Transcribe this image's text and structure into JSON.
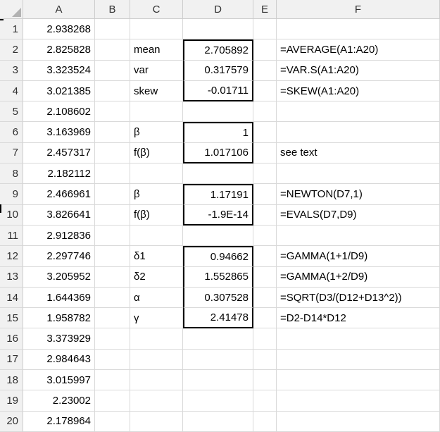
{
  "sheet": {
    "column_headers": [
      "A",
      "B",
      "C",
      "D",
      "E",
      "F"
    ],
    "row_headers": [
      "1",
      "2",
      "3",
      "4",
      "5",
      "6",
      "7",
      "8",
      "9",
      "10",
      "11",
      "12",
      "13",
      "14",
      "15",
      "16",
      "17",
      "18",
      "19",
      "20"
    ],
    "cells": {
      "A1": "2.938268",
      "A2": "2.825828",
      "A3": "3.323524",
      "A4": "3.021385",
      "A5": "2.108602",
      "A6": "3.163969",
      "A7": "2.457317",
      "A8": "2.182112",
      "A9": "2.466961",
      "A10": "3.826641",
      "A11": "2.912836",
      "A12": "2.297746",
      "A13": "3.205952",
      "A14": "1.644369",
      "A15": "1.958782",
      "A16": "3.373929",
      "A17": "2.984643",
      "A18": "3.015997",
      "A19": "2.23002",
      "A20": "2.178964",
      "C2": "mean",
      "C3": "var",
      "C4": "skew",
      "C6": "β",
      "C7": "f(β)",
      "C9": "β",
      "C10": "f(β)",
      "C12": "δ1",
      "C13": "δ2",
      "C14": "α",
      "C15": "γ",
      "D2": "2.705892",
      "D3": "0.317579",
      "D4": "-0.01711",
      "D6": "1",
      "D7": "1.017106",
      "D9": "1.17191",
      "D10": "-1.9E-14",
      "D12": "0.94662",
      "D13": "1.552865",
      "D14": "0.307528",
      "D15": "2.41478",
      "F2": "=AVERAGE(A1:A20)",
      "F3": "=VAR.S(A1:A20)",
      "F4": "=SKEW(A1:A20)",
      "F7": "see text",
      "F9": "=NEWTON(D7,1)",
      "F10": "=EVALS(D7,D9)",
      "F12": "=GAMMA(1+1/D9)",
      "F13": "=GAMMA(1+2/D9)",
      "F14": "=SQRT(D3/(D12+D13^2))",
      "F15": "=D2-D14*D12"
    },
    "boxed_ranges": [
      "D2:D4",
      "D6:D7",
      "D9:D10",
      "D12:D15"
    ],
    "align": {
      "A": "right",
      "B": "left",
      "C": "left",
      "D": "right",
      "E": "left",
      "F": "left"
    }
  },
  "colors": {
    "grid_line": "#d9d9d9",
    "header_bg": "#f1f1f1",
    "header_text": "#303030",
    "cell_text": "#000000",
    "box_border": "#000000",
    "corner_triangle": "#b2b2b2"
  }
}
